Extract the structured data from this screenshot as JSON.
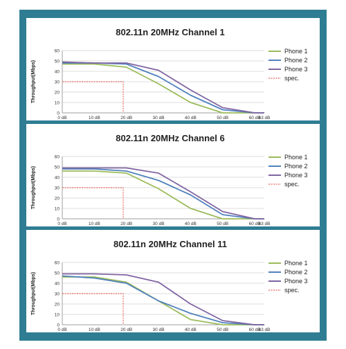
{
  "chart_data": [
    {
      "type": "line",
      "title": "802.11n 20MHz Channel 1",
      "ylabel": "Throughput(Mbps)",
      "xlabel": "",
      "categories": [
        "0 dB",
        "10 dB",
        "20 dB",
        "30 dB",
        "40 dB",
        "50 dB",
        "60 dB",
        "63 dB"
      ],
      "x": [
        0,
        10,
        20,
        30,
        40,
        50,
        60,
        63
      ],
      "ylim": [
        0,
        60
      ],
      "yticks": [
        0,
        10,
        20,
        30,
        40,
        50,
        60
      ],
      "grid": true,
      "legend": "right",
      "series": [
        {
          "name": "Phone 1",
          "color": "#9bbb59",
          "values": [
            47,
            47,
            44,
            28,
            10,
            0,
            0,
            0
          ]
        },
        {
          "name": "Phone 2",
          "color": "#4f81bd",
          "values": [
            48,
            48,
            47,
            35,
            17,
            3,
            0,
            0
          ]
        },
        {
          "name": "Phone 3",
          "color": "#8064a2",
          "values": [
            49,
            48,
            48,
            41,
            22,
            5,
            0,
            0
          ]
        }
      ],
      "spec": {
        "name": "spec.",
        "color": "#e03c31",
        "x": 19,
        "y": 30
      }
    },
    {
      "type": "line",
      "title": "802.11n 20MHz Channel 6",
      "ylabel": "Throughput(Mbps)",
      "xlabel": "",
      "categories": [
        "0 dB",
        "10 dB",
        "20 dB",
        "30 dB",
        "40 dB",
        "50 dB",
        "60 dB",
        "63 dB"
      ],
      "x": [
        0,
        10,
        20,
        30,
        40,
        50,
        60,
        63
      ],
      "ylim": [
        0,
        60
      ],
      "yticks": [
        0,
        10,
        20,
        30,
        40,
        50,
        60
      ],
      "grid": true,
      "legend": "right",
      "series": [
        {
          "name": "Phone 1",
          "color": "#9bbb59",
          "values": [
            46,
            46,
            44,
            29,
            10,
            0,
            0,
            0
          ]
        },
        {
          "name": "Phone 2",
          "color": "#4f81bd",
          "values": [
            48,
            48,
            46,
            37,
            23,
            4,
            0,
            0
          ]
        },
        {
          "name": "Phone 3",
          "color": "#8064a2",
          "values": [
            49,
            49,
            49,
            44,
            26,
            7,
            0,
            0
          ]
        }
      ],
      "spec": {
        "name": "spec.",
        "color": "#e03c31",
        "x": 19,
        "y": 30
      }
    },
    {
      "type": "line",
      "title": "802.11n 20MHz Channel 11",
      "ylabel": "Throughput(Mbps)",
      "xlabel": "",
      "categories": [
        "0 dB",
        "10 dB",
        "20 dB",
        "30 dB",
        "40 dB",
        "50 dB",
        "60 dB",
        "63 dB"
      ],
      "x": [
        0,
        10,
        20,
        30,
        40,
        50,
        60,
        63
      ],
      "ylim": [
        0,
        60
      ],
      "yticks": [
        0,
        10,
        20,
        30,
        40,
        50,
        60
      ],
      "grid": true,
      "legend": "right",
      "series": [
        {
          "name": "Phone 1",
          "color": "#9bbb59",
          "values": [
            46,
            46,
            41,
            23,
            5,
            0,
            0,
            0
          ]
        },
        {
          "name": "Phone 2",
          "color": "#4f81bd",
          "values": [
            47,
            45,
            40,
            23,
            11,
            2,
            0,
            0
          ]
        },
        {
          "name": "Phone 3",
          "color": "#8064a2",
          "values": [
            49,
            49,
            48,
            41,
            20,
            4,
            0,
            0
          ]
        }
      ],
      "spec": {
        "name": "spec.",
        "color": "#e03c31",
        "x": 19,
        "y": 30
      }
    }
  ]
}
